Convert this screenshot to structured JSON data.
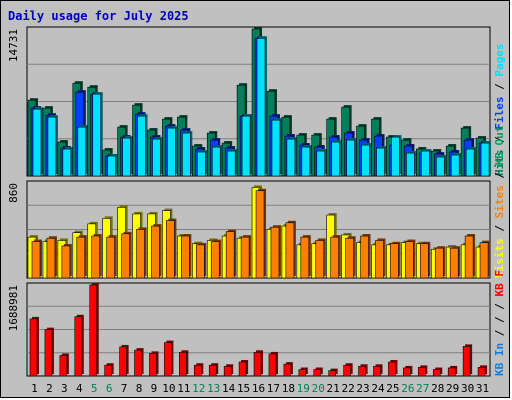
{
  "chart_data": {
    "type": "bar",
    "title": "Daily usage for July 2025",
    "categories": [
      "1",
      "2",
      "3",
      "4",
      "5",
      "6",
      "7",
      "8",
      "9",
      "10",
      "11",
      "12",
      "13",
      "14",
      "15",
      "16",
      "17",
      "18",
      "19",
      "20",
      "21",
      "22",
      "23",
      "24",
      "25",
      "26",
      "27",
      "28",
      "29",
      "30",
      "31"
    ],
    "weekend_days": [
      "5",
      "6",
      "12",
      "13",
      "19",
      "20",
      "26",
      "27"
    ],
    "colors": {
      "hits": "#00805a",
      "files": "#0040ff",
      "pages": "#00e0ff",
      "visits": "#ffff00",
      "sites": "#ff8000",
      "kb_in": "#1080e0",
      "kb_out": "#00a060",
      "kbytes": "#ff0000",
      "weekend_label": "#00805a",
      "title": "#0000c0"
    },
    "panels": [
      {
        "id": "top",
        "ymax_label": "14731",
        "ymax": 14731,
        "legend": [
          {
            "text": "Hits",
            "color": "#00805a"
          },
          {
            "text": "Files",
            "color": "#0040ff"
          },
          {
            "text": "Pages",
            "color": "#00e0ff"
          }
        ],
        "series": [
          {
            "name": "Hits",
            "values": [
              7600,
              6800,
              3400,
              9300,
              8900,
              2600,
              4900,
              7100,
              4600,
              5700,
              5900,
              3000,
              4300,
              3300,
              9100,
              14731,
              8500,
              5900,
              4100,
              4100,
              5700,
              6900,
              5000,
              5700,
              3900,
              3600,
              2700,
              2500,
              3000,
              4800,
              3800
            ]
          },
          {
            "name": "Files",
            "values": [
              6800,
              6100,
              2800,
              8400,
              8200,
              2000,
              3900,
              6200,
              3900,
              5000,
              4600,
              2700,
              3600,
              2800,
              6000,
              13800,
              6000,
              4000,
              3100,
              2900,
              3900,
              4300,
              3600,
              4000,
              3100,
              3000,
              2300,
              2200,
              2400,
              3600,
              3300
            ]
          },
          {
            "name": "Pages",
            "values": [
              6700,
              5900,
              2700,
              4900,
              8200,
              2000,
              3800,
              6000,
              3700,
              4800,
              4300,
              2400,
              2900,
              2500,
              6000,
              13800,
              5600,
              3700,
              2900,
              2500,
              3400,
              3600,
              3100,
              2800,
              3900,
              2300,
              2500,
              1900,
              2100,
              2700,
              3300
            ]
          }
        ]
      },
      {
        "id": "middle",
        "ymax_label": "860",
        "ymax": 860,
        "legend": [
          {
            "text": "Visits",
            "color": "#ffff00"
          },
          {
            "text": "Sites",
            "color": "#ff8000"
          },
          {
            "text": "KB Out",
            "color": "#00a060"
          }
        ],
        "series": [
          {
            "name": "Visits",
            "values": [
              370,
              330,
              340,
              410,
              490,
              540,
              640,
              580,
              580,
              610,
              380,
              310,
              340,
              380,
              360,
              820,
              440,
              470,
              300,
              310,
              570,
              390,
              320,
              300,
              300,
              320,
              310,
              260,
              280,
              300,
              280
            ]
          },
          {
            "name": "Sites",
            "values": [
              330,
              360,
              290,
              370,
              380,
              370,
              400,
              440,
              470,
              520,
              380,
              300,
              330,
              420,
              370,
              790,
              460,
              500,
              370,
              340,
              370,
              360,
              380,
              340,
              310,
              330,
              310,
              270,
              270,
              380,
              320
            ]
          }
        ]
      },
      {
        "id": "bottom",
        "ymax_label": "1688981",
        "ymax": 1688981,
        "legend": [
          {
            "text": "KB In",
            "color": "#1080e0"
          },
          {
            "text": "/",
            "color": "#000000"
          },
          {
            "text": "KB F",
            "color": "#ff0000"
          }
        ],
        "series": [
          {
            "name": "KBytes",
            "values": [
              1060000,
              860000,
              380000,
              1100000,
              1688981,
              200000,
              540000,
              480000,
              420000,
              620000,
              440000,
              200000,
              200000,
              180000,
              260000,
              440000,
              410000,
              220000,
              120000,
              120000,
              100000,
              200000,
              180000,
              180000,
              260000,
              150000,
              160000,
              120000,
              150000,
              550000,
              160000
            ]
          }
        ]
      }
    ]
  }
}
